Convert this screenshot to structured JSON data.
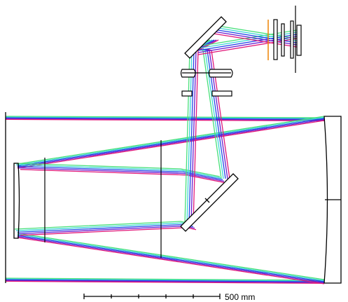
{
  "scale_bar": {
    "label": "500 mm"
  },
  "colors": {
    "optic": "#000000",
    "ray_magenta": "#e0197a",
    "ray_purple": "#6a1fd1",
    "ray_blue": "#2548e8",
    "ray_cyan": "#3fd6d6",
    "ray_green": "#48e07a",
    "ray_orange": "#f08a12"
  },
  "icons": [
    "primary-mirror",
    "secondary-mirror",
    "fold-mirror",
    "lens-group",
    "focal-plane",
    "scale-bar"
  ]
}
